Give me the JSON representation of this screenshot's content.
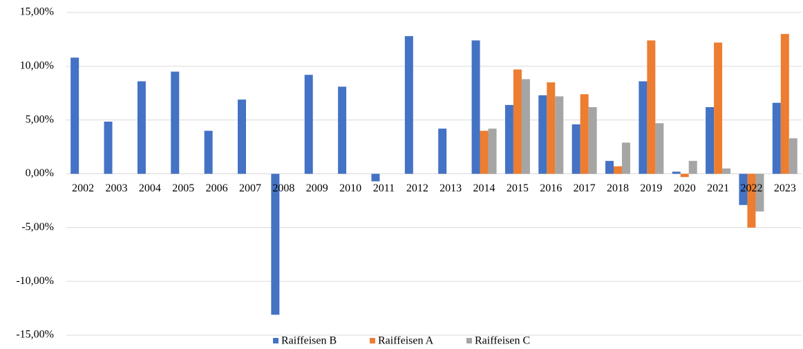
{
  "chart_data": {
    "type": "bar",
    "categories": [
      "2002",
      "2003",
      "2004",
      "2005",
      "2006",
      "2007",
      "2008",
      "2009",
      "2010",
      "2011",
      "2012",
      "2013",
      "2014",
      "2015",
      "2016",
      "2017",
      "2018",
      "2019",
      "2020",
      "2021",
      "2022",
      "2023"
    ],
    "series": [
      {
        "name": "Raiffeisen B",
        "color": "#4472c4",
        "values": [
          10.8,
          4.85,
          8.6,
          9.5,
          4.0,
          6.9,
          -13.1,
          9.2,
          8.1,
          -0.7,
          12.8,
          4.2,
          12.4,
          6.4,
          7.3,
          4.6,
          1.2,
          8.6,
          0.2,
          6.2,
          -2.9,
          6.6
        ]
      },
      {
        "name": "Raiffeisen A",
        "color": "#ed7d31",
        "values": [
          null,
          null,
          null,
          null,
          null,
          null,
          null,
          null,
          null,
          null,
          null,
          null,
          4.0,
          9.7,
          8.5,
          7.4,
          0.7,
          12.4,
          -0.3,
          12.2,
          -5.0,
          13.0
        ]
      },
      {
        "name": "Raiffeisen C",
        "color": "#a5a5a5",
        "values": [
          null,
          null,
          null,
          null,
          null,
          null,
          null,
          null,
          null,
          null,
          null,
          null,
          4.2,
          8.8,
          7.2,
          6.2,
          2.9,
          4.7,
          1.2,
          0.5,
          -3.5,
          3.3
        ]
      }
    ],
    "ylim": [
      -15,
      15
    ],
    "yticks": [
      {
        "value": -15,
        "label": "-15,00%"
      },
      {
        "value": -10,
        "label": "-10,00%"
      },
      {
        "value": -5,
        "label": "-5,00%"
      },
      {
        "value": 0,
        "label": "0,00%"
      },
      {
        "value": 5,
        "label": "5,00%"
      },
      {
        "value": 10,
        "label": "10,00%"
      },
      {
        "value": 15,
        "label": "15,00%"
      }
    ],
    "grid": true,
    "legend": "bottom"
  }
}
